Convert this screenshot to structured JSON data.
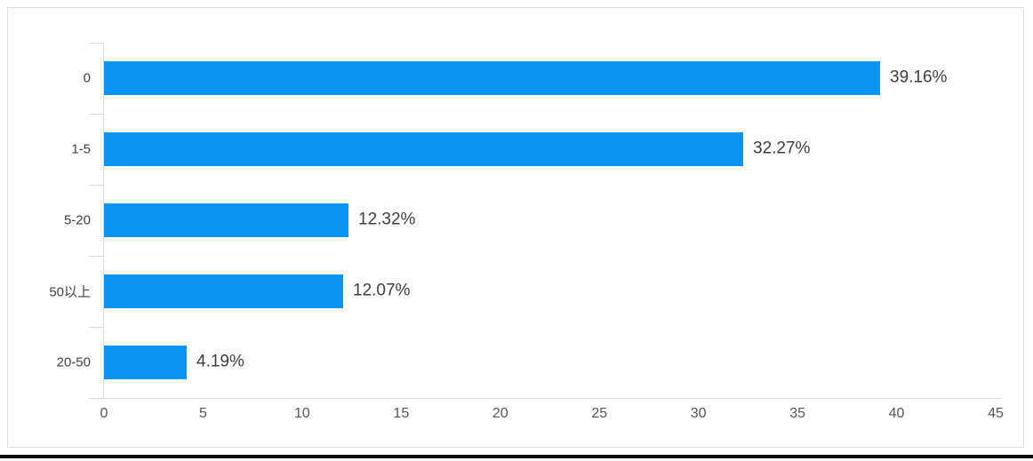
{
  "chart_data": {
    "type": "bar",
    "orientation": "horizontal",
    "title": "",
    "xlabel": "",
    "ylabel": "",
    "categories": [
      "0",
      "1-5",
      "5-20",
      "50以上",
      "20-50"
    ],
    "values": [
      39.16,
      32.27,
      12.32,
      12.07,
      4.19
    ],
    "data_labels": [
      "39.16%",
      "32.27%",
      "12.32%",
      "12.07%",
      "4.19%"
    ],
    "xlim": [
      0,
      45
    ],
    "x_ticks": [
      "0",
      "5",
      "10",
      "15",
      "20",
      "25",
      "30",
      "35",
      "40",
      "45"
    ],
    "grid": false,
    "legend": false,
    "colors": {
      "bar": "#0b94f2",
      "axis_line": "#d9d9d9",
      "data_label_text": "#3d3d3d",
      "category_label_text": "#404040",
      "tick_label_text": "#555555",
      "frame_border": "#dedede",
      "bottom_rule": "#0a0a0a"
    }
  }
}
